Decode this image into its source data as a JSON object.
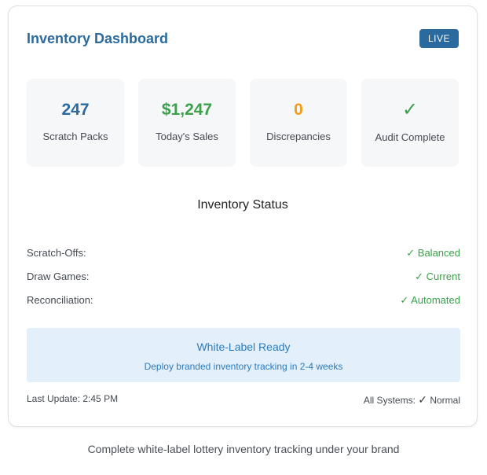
{
  "header": {
    "title": "Inventory Dashboard",
    "badge": "LIVE"
  },
  "stats": [
    {
      "value": "247",
      "label": "Scratch Packs",
      "color": "#2b6a9e"
    },
    {
      "value": "$1,247",
      "label": "Today's Sales",
      "color": "#3aa04a"
    },
    {
      "value": "0",
      "label": "Discrepancies",
      "color": "#f39c12"
    },
    {
      "value": "✓",
      "label": "Audit Complete",
      "color": "#3aa04a",
      "icon": "check-icon"
    }
  ],
  "status": {
    "title": "Inventory Status",
    "rows": [
      {
        "label": "Scratch-Offs:",
        "value": "✓ Balanced"
      },
      {
        "label": "Draw Games:",
        "value": "✓ Current"
      },
      {
        "label": "Reconciliation:",
        "value": "✓ Automated"
      }
    ]
  },
  "whitelabel": {
    "title": "White-Label Ready",
    "subtitle": "Deploy branded inventory tracking in 2-4 weeks"
  },
  "footer": {
    "last_update": "Last Update: 2:45 PM",
    "systems_prefix": "All Systems: ",
    "systems_check": "✓",
    "systems_status": " Normal"
  },
  "caption": "Complete white-label lottery inventory tracking under your brand",
  "colors": {
    "brand": "#2b6a9e",
    "success": "#3aa04a",
    "warning": "#f39c12",
    "info_bg": "#e3f0fb",
    "info_text": "#2b7bc0"
  }
}
